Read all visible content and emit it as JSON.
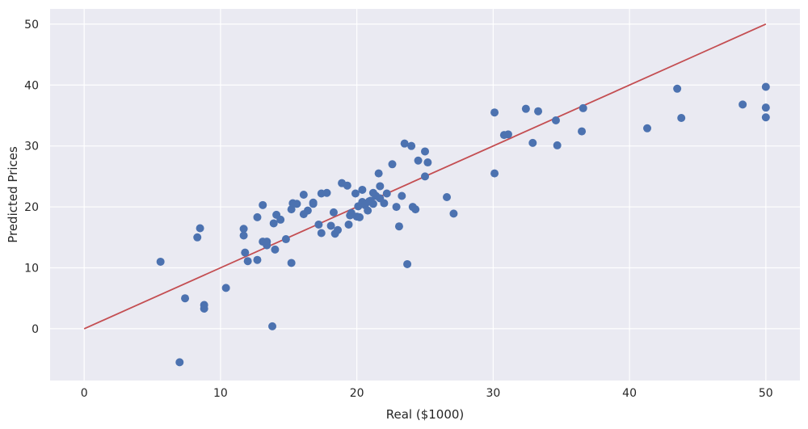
{
  "chart_data": {
    "type": "scatter",
    "title": "",
    "xlabel": "Real ($1000)",
    "ylabel": "Predicted Prices",
    "xlim": [
      -2.5,
      52.5
    ],
    "ylim": [
      -8.5,
      52.5
    ],
    "xticks": [
      0,
      10,
      20,
      30,
      40,
      50
    ],
    "yticks": [
      0,
      10,
      20,
      30,
      40,
      50
    ],
    "grid": true,
    "legend": "none",
    "colors": {
      "background": "#eaeaf2",
      "grid": "#ffffff",
      "points": "#4c72b0",
      "reference_line": "#c44e52"
    },
    "series": [
      {
        "values": [
          [
            5.6,
            11.0
          ],
          [
            7.0,
            -5.5
          ],
          [
            7.4,
            5.0
          ],
          [
            8.3,
            15.0
          ],
          [
            8.5,
            16.5
          ],
          [
            8.8,
            3.3
          ],
          [
            8.8,
            3.9
          ],
          [
            10.4,
            6.7
          ],
          [
            11.7,
            15.3
          ],
          [
            11.7,
            16.4
          ],
          [
            11.8,
            12.5
          ],
          [
            12.0,
            11.1
          ],
          [
            12.7,
            18.3
          ],
          [
            12.7,
            11.3
          ],
          [
            13.1,
            20.3
          ],
          [
            13.1,
            14.3
          ],
          [
            13.4,
            14.3
          ],
          [
            13.4,
            13.7
          ],
          [
            13.8,
            0.4
          ],
          [
            13.9,
            17.3
          ],
          [
            14.0,
            13.0
          ],
          [
            14.1,
            18.7
          ],
          [
            14.4,
            17.9
          ],
          [
            14.8,
            14.7
          ],
          [
            15.2,
            10.8
          ],
          [
            15.2,
            19.6
          ],
          [
            15.3,
            20.6
          ],
          [
            15.6,
            20.5
          ],
          [
            16.1,
            22.0
          ],
          [
            16.1,
            18.8
          ],
          [
            16.4,
            19.4
          ],
          [
            16.8,
            20.5
          ],
          [
            16.8,
            20.7
          ],
          [
            17.2,
            17.1
          ],
          [
            17.4,
            22.2
          ],
          [
            17.4,
            15.7
          ],
          [
            17.8,
            22.3
          ],
          [
            18.1,
            16.9
          ],
          [
            18.3,
            19.1
          ],
          [
            18.4,
            15.6
          ],
          [
            18.6,
            16.2
          ],
          [
            18.9,
            23.9
          ],
          [
            19.3,
            23.5
          ],
          [
            19.4,
            17.1
          ],
          [
            19.5,
            18.6
          ],
          [
            19.6,
            19.0
          ],
          [
            19.9,
            22.2
          ],
          [
            20.0,
            18.4
          ],
          [
            20.1,
            20.1
          ],
          [
            20.2,
            18.3
          ],
          [
            20.4,
            22.8
          ],
          [
            20.4,
            20.8
          ],
          [
            20.6,
            20.3
          ],
          [
            20.8,
            19.4
          ],
          [
            20.9,
            20.9
          ],
          [
            21.0,
            21.0
          ],
          [
            21.2,
            20.5
          ],
          [
            21.2,
            22.3
          ],
          [
            21.4,
            21.8
          ],
          [
            21.6,
            25.5
          ],
          [
            21.7,
            23.4
          ],
          [
            21.7,
            21.4
          ],
          [
            22.0,
            20.6
          ],
          [
            22.2,
            22.2
          ],
          [
            22.6,
            27.0
          ],
          [
            22.9,
            20.0
          ],
          [
            23.1,
            16.8
          ],
          [
            23.3,
            21.8
          ],
          [
            23.5,
            30.4
          ],
          [
            23.7,
            10.6
          ],
          [
            24.0,
            30.0
          ],
          [
            24.1,
            20.0
          ],
          [
            24.3,
            19.6
          ],
          [
            24.5,
            27.6
          ],
          [
            25.0,
            29.1
          ],
          [
            25.0,
            25.0
          ],
          [
            25.2,
            27.3
          ],
          [
            26.6,
            21.6
          ],
          [
            27.1,
            18.9
          ],
          [
            30.1,
            35.5
          ],
          [
            30.1,
            25.5
          ],
          [
            30.8,
            31.8
          ],
          [
            31.1,
            31.9
          ],
          [
            32.4,
            36.1
          ],
          [
            32.9,
            30.5
          ],
          [
            33.3,
            35.7
          ],
          [
            34.6,
            34.2
          ],
          [
            34.7,
            30.1
          ],
          [
            36.5,
            32.4
          ],
          [
            36.6,
            36.2
          ],
          [
            41.3,
            32.9
          ],
          [
            43.5,
            39.4
          ],
          [
            43.8,
            34.6
          ],
          [
            48.3,
            36.8
          ],
          [
            50.0,
            39.7
          ],
          [
            50.0,
            36.3
          ],
          [
            50.0,
            34.7
          ]
        ]
      }
    ],
    "reference_line": {
      "x": [
        0,
        50
      ],
      "y": [
        0,
        50
      ]
    }
  }
}
